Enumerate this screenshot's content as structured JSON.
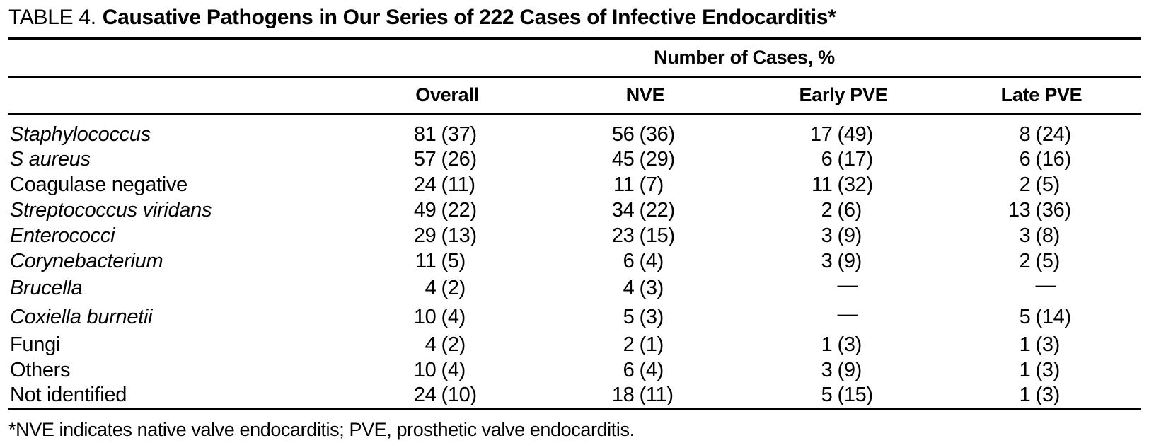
{
  "title": {
    "label": "TABLE 4.",
    "text": "Causative Pathogens in Our Series of 222 Cases of Infective Endocarditis*"
  },
  "table": {
    "span_header": "Number of Cases, %",
    "columns": [
      "Overall",
      "NVE",
      "Early PVE",
      "Late PVE"
    ],
    "rows": [
      {
        "name": "Staphylococcus",
        "italic": true,
        "cells": [
          {
            "n": "81",
            "p": "(37)"
          },
          {
            "n": "56",
            "p": "(36)"
          },
          {
            "n": "17",
            "p": "(49)"
          },
          {
            "n": "8",
            "p": "(24)"
          }
        ]
      },
      {
        "name": "S aureus",
        "italic": true,
        "cells": [
          {
            "n": "57",
            "p": "(26)"
          },
          {
            "n": "45",
            "p": "(29)"
          },
          {
            "n": "6",
            "p": "(17)"
          },
          {
            "n": "6",
            "p": "(16)"
          }
        ]
      },
      {
        "name": "Coagulase negative",
        "italic": false,
        "cells": [
          {
            "n": "24",
            "p": "(11)"
          },
          {
            "n": "11",
            "p": "(7)"
          },
          {
            "n": "11",
            "p": "(32)"
          },
          {
            "n": "2",
            "p": "(5)"
          }
        ]
      },
      {
        "name": "Streptococcus viridans",
        "italic": true,
        "cells": [
          {
            "n": "49",
            "p": "(22)"
          },
          {
            "n": "34",
            "p": "(22)"
          },
          {
            "n": "2",
            "p": "(6)"
          },
          {
            "n": "13",
            "p": "(36)"
          }
        ]
      },
      {
        "name": "Enterococci",
        "italic": true,
        "cells": [
          {
            "n": "29",
            "p": "(13)"
          },
          {
            "n": "23",
            "p": "(15)"
          },
          {
            "n": "3",
            "p": "(9)"
          },
          {
            "n": "3",
            "p": "(8)"
          }
        ]
      },
      {
        "name": "Corynebacterium",
        "italic": true,
        "cells": [
          {
            "n": "11",
            "p": "(5)"
          },
          {
            "n": "6",
            "p": "(4)"
          },
          {
            "n": "3",
            "p": "(9)"
          },
          {
            "n": "2",
            "p": "(5)"
          }
        ]
      },
      {
        "name": "Brucella",
        "italic": true,
        "cells": [
          {
            "n": "4",
            "p": "(2)"
          },
          {
            "n": "4",
            "p": "(3)"
          },
          {
            "n": "",
            "p": "—"
          },
          {
            "n": "",
            "p": "—"
          }
        ]
      },
      {
        "name": "Coxiella burnetii",
        "italic": true,
        "cells": [
          {
            "n": "10",
            "p": "(4)"
          },
          {
            "n": "5",
            "p": "(3)"
          },
          {
            "n": "",
            "p": "—"
          },
          {
            "n": "5",
            "p": "(14)"
          }
        ]
      },
      {
        "name": "Fungi",
        "italic": false,
        "cells": [
          {
            "n": "4",
            "p": "(2)"
          },
          {
            "n": "2",
            "p": "(1)"
          },
          {
            "n": "1",
            "p": "(3)"
          },
          {
            "n": "1",
            "p": "(3)"
          }
        ]
      },
      {
        "name": "Others",
        "italic": false,
        "cells": [
          {
            "n": "10",
            "p": "(4)"
          },
          {
            "n": "6",
            "p": "(4)"
          },
          {
            "n": "3",
            "p": "(9)"
          },
          {
            "n": "1",
            "p": "(3)"
          }
        ]
      },
      {
        "name": "Not identified",
        "italic": false,
        "cells": [
          {
            "n": "24",
            "p": "(10)"
          },
          {
            "n": "18",
            "p": "(11)"
          },
          {
            "n": "5",
            "p": "(15)"
          },
          {
            "n": "1",
            "p": "(3)"
          }
        ]
      }
    ]
  },
  "footnote": "*NVE indicates native valve endocarditis; PVE, prosthetic valve endocarditis."
}
